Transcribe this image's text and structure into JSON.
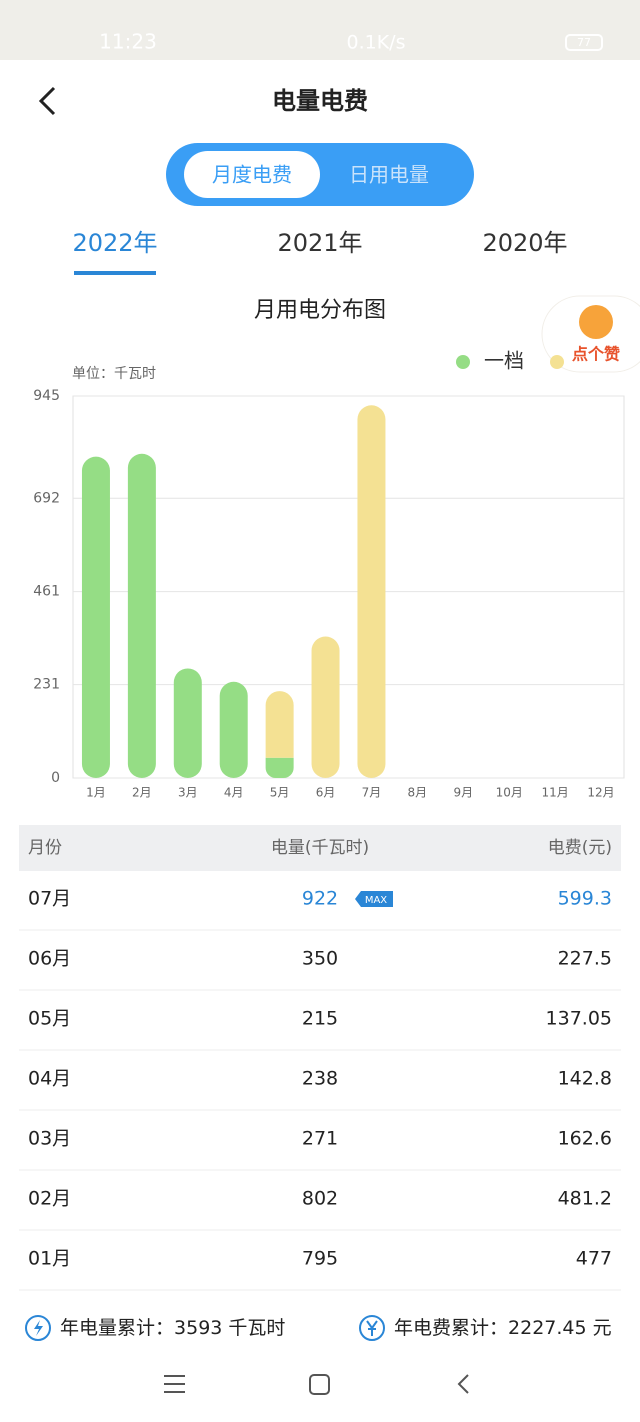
{
  "status_bar": {
    "time": "11:23",
    "speed": "0.1K/s",
    "battery": "77"
  },
  "header": {
    "title": "电量电费"
  },
  "tabs": [
    "月度电费",
    "日用电量"
  ],
  "years": [
    "2022年",
    "2021年",
    "2020年"
  ],
  "like_button": "点个赞",
  "chart_data": {
    "type": "stacked_bar",
    "title": "月用电分布图",
    "y_label": "单位：千瓦时",
    "categories": [
      "1月",
      "2月",
      "3月",
      "4月",
      "5月",
      "6月",
      "7月",
      "8月",
      "9月",
      "10月",
      "11月",
      "12月"
    ],
    "series": [
      {
        "name": "一档",
        "color": "#95dd85",
        "values": [
          795,
          802,
          271,
          238,
          50,
          null,
          null,
          null,
          null,
          null,
          null,
          null
        ]
      },
      {
        "color": "#f4e193",
        "values": [
          null,
          null,
          null,
          null,
          165,
          350,
          922,
          null,
          null,
          null,
          null,
          null
        ]
      }
    ],
    "ylim": [
      0,
      945
    ],
    "yticks": [
      0,
      231,
      461,
      692,
      945
    ],
    "grid": true
  },
  "table": {
    "headers": [
      "月份",
      "电量(千瓦时)",
      "电费(元)"
    ],
    "rows": [
      [
        "07月",
        922,
        599.3
      ],
      [
        "06月",
        350,
        227.5
      ],
      [
        "05月",
        215,
        137.05
      ],
      [
        "04月",
        238,
        142.8
      ],
      [
        "03月",
        271,
        162.6
      ],
      [
        "02月",
        802,
        481.2
      ],
      [
        "01月",
        795,
        477
      ]
    ],
    "max_badge": "MAX"
  },
  "totals": {
    "energy_label": "年电量累计：",
    "energy_value": 3593,
    "energy_unit": "千瓦时",
    "fee_label": "年电费累计：",
    "fee_value": 2227.45,
    "fee_unit": "元"
  }
}
